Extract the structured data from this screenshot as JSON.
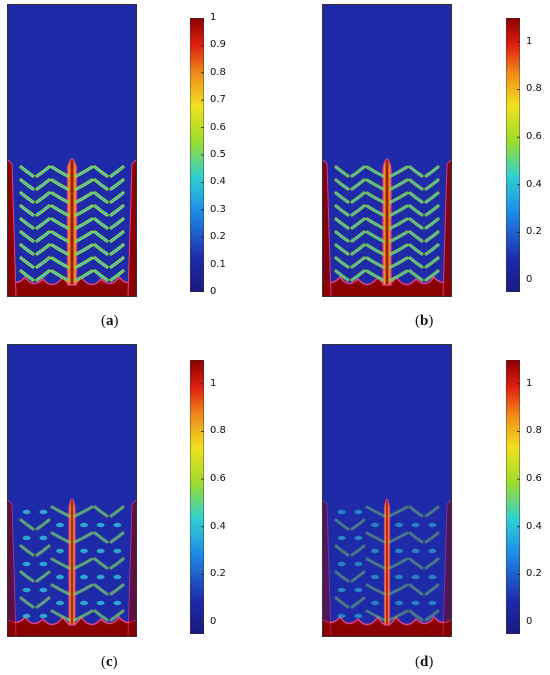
{
  "figure": {
    "panels": [
      {
        "label": "a",
        "colorbar": {
          "ticks": [
            "1",
            "0.9",
            "0.8",
            "0.7",
            "0.6",
            "0.5",
            "0.4",
            "0.3",
            "0.2",
            "0.1",
            "0"
          ],
          "range": [
            0,
            1
          ]
        }
      },
      {
        "label": "b",
        "colorbar": {
          "ticks": [
            "1",
            "0.8",
            "0.6",
            "0.4",
            "0.2",
            "0"
          ],
          "range": [
            -0.05,
            1.1
          ]
        }
      },
      {
        "label": "c",
        "colorbar": {
          "ticks": [
            "1",
            "0.8",
            "0.6",
            "0.4",
            "0.2",
            "0"
          ],
          "range": [
            -0.05,
            1.1
          ]
        }
      },
      {
        "label": "d",
        "colorbar": {
          "ticks": [
            "1",
            "0.8",
            "0.6",
            "0.4",
            "0.2",
            "0"
          ],
          "range": [
            -0.05,
            1.1
          ]
        }
      }
    ],
    "colormap": "jet",
    "colors": {
      "low": "#1e2aa8",
      "mid": "#9cdc2c",
      "high": "#8b0000",
      "interface": "#e0408a"
    }
  }
}
